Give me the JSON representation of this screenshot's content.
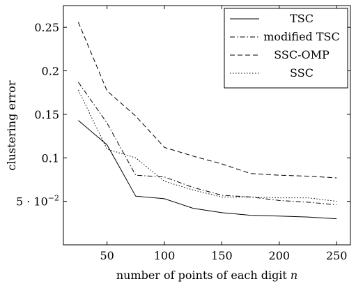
{
  "chart_data": {
    "type": "line",
    "xlabel": "number of points of each digit",
    "xlabel_var": "n",
    "ylabel": "clustering error",
    "xlim": [
      12,
      262
    ],
    "ylim": [
      0.0,
      0.275
    ],
    "xticks": [
      50,
      100,
      150,
      200,
      250
    ],
    "xtick_labels": [
      "50",
      "100",
      "150",
      "200",
      "250"
    ],
    "yticks": [
      0.05,
      0.1,
      0.15,
      0.2,
      0.25
    ],
    "ytick_labels": [
      "5 · 10",
      "0.1",
      "0.15",
      "0.2",
      "0.25"
    ],
    "ytick_exponent": {
      "index": 0,
      "value": "−2"
    },
    "grid": false,
    "legend_position": "top-right",
    "x": [
      25,
      50,
      75,
      100,
      125,
      150,
      175,
      200,
      225,
      250
    ],
    "series": [
      {
        "name": "TSC",
        "style": "solid",
        "values": [
          0.143,
          0.115,
          0.056,
          0.053,
          0.042,
          0.037,
          0.034,
          0.033,
          0.032,
          0.03
        ]
      },
      {
        "name": "modified TSC",
        "style": "dashdot",
        "values": [
          0.187,
          0.14,
          0.08,
          0.078,
          0.066,
          0.057,
          0.055,
          0.051,
          0.049,
          0.046
        ]
      },
      {
        "name": "SSC-OMP",
        "style": "dashed",
        "values": [
          0.256,
          0.177,
          0.148,
          0.112,
          0.102,
          0.093,
          0.082,
          0.08,
          0.079,
          0.077
        ]
      },
      {
        "name": "SSC",
        "style": "dotted",
        "values": [
          0.178,
          0.11,
          0.1,
          0.073,
          0.063,
          0.055,
          0.055,
          0.054,
          0.054,
          0.05
        ]
      }
    ]
  }
}
